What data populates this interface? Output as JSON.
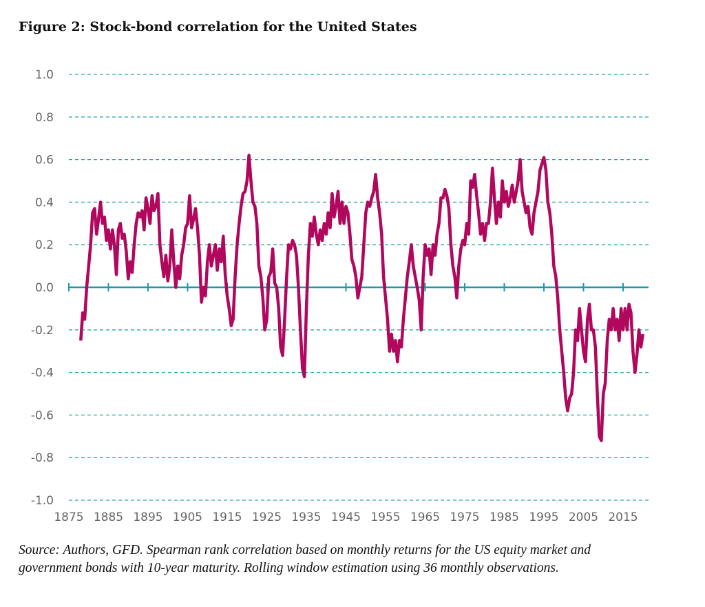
{
  "chart_data": {
    "type": "line",
    "title": "Figure 2: Stock-bond correlation for the United States",
    "xlabel": "",
    "ylabel": "",
    "ylim": [
      -1.0,
      1.0
    ],
    "xlim": [
      1875,
      2021
    ],
    "yticks": [
      "1.0",
      "0.8",
      "0.6",
      "0.4",
      "0.2",
      "0.0",
      "-0.2",
      "-0.4",
      "-0.6",
      "-0.8",
      "-1.0"
    ],
    "xticks": [
      "1875",
      "1885",
      "1895",
      "1905",
      "1915",
      "1925",
      "1935",
      "1945",
      "1955",
      "1965",
      "1975",
      "1985",
      "1995",
      "2005",
      "2015"
    ],
    "grid": "horizontal dashed",
    "legend": "none",
    "colors": {
      "line": "#b1085e",
      "grid": "#2aa7a7",
      "zero_line": "#1b9aa8"
    },
    "series": [
      {
        "points": [
          [
            1878,
            -0.25
          ],
          [
            1878.5,
            -0.12
          ],
          [
            1879,
            -0.15
          ],
          [
            1879.5,
            0.0
          ],
          [
            1880,
            0.1
          ],
          [
            1880.5,
            0.2
          ],
          [
            1881,
            0.35
          ],
          [
            1881.5,
            0.37
          ],
          [
            1882,
            0.25
          ],
          [
            1882.5,
            0.32
          ],
          [
            1883,
            0.4
          ],
          [
            1883.5,
            0.3
          ],
          [
            1884,
            0.33
          ],
          [
            1884.5,
            0.22
          ],
          [
            1885,
            0.27
          ],
          [
            1885.5,
            0.18
          ],
          [
            1886,
            0.27
          ],
          [
            1886.5,
            0.2
          ],
          [
            1887,
            0.06
          ],
          [
            1887.5,
            0.27
          ],
          [
            1888,
            0.3
          ],
          [
            1888.5,
            0.23
          ],
          [
            1889,
            0.25
          ],
          [
            1889.5,
            0.17
          ],
          [
            1890,
            0.04
          ],
          [
            1890.5,
            0.12
          ],
          [
            1891,
            0.07
          ],
          [
            1891.5,
            0.2
          ],
          [
            1892,
            0.3
          ],
          [
            1892.5,
            0.35
          ],
          [
            1893,
            0.33
          ],
          [
            1893.5,
            0.36
          ],
          [
            1894,
            0.27
          ],
          [
            1894.5,
            0.42
          ],
          [
            1895,
            0.37
          ],
          [
            1895.5,
            0.3
          ],
          [
            1896,
            0.43
          ],
          [
            1896.5,
            0.36
          ],
          [
            1897,
            0.38
          ],
          [
            1897.5,
            0.44
          ],
          [
            1898,
            0.2
          ],
          [
            1898.5,
            0.12
          ],
          [
            1899,
            0.05
          ],
          [
            1899.5,
            0.15
          ],
          [
            1900,
            0.03
          ],
          [
            1900.5,
            0.1
          ],
          [
            1901,
            0.27
          ],
          [
            1901.5,
            0.12
          ],
          [
            1902,
            0.0
          ],
          [
            1902.5,
            0.1
          ],
          [
            1903,
            0.04
          ],
          [
            1903.5,
            0.15
          ],
          [
            1904,
            0.2
          ],
          [
            1904.5,
            0.28
          ],
          [
            1905,
            0.3
          ],
          [
            1905.5,
            0.43
          ],
          [
            1906,
            0.28
          ],
          [
            1906.5,
            0.32
          ],
          [
            1907,
            0.37
          ],
          [
            1907.5,
            0.28
          ],
          [
            1908,
            0.15
          ],
          [
            1908.5,
            -0.07
          ],
          [
            1909,
            0.0
          ],
          [
            1909.5,
            -0.04
          ],
          [
            1910,
            0.12
          ],
          [
            1910.5,
            0.2
          ],
          [
            1911,
            0.1
          ],
          [
            1911.5,
            0.15
          ],
          [
            1912,
            0.2
          ],
          [
            1912.5,
            0.08
          ],
          [
            1913,
            0.18
          ],
          [
            1913.5,
            0.12
          ],
          [
            1914,
            0.24
          ],
          [
            1914.5,
            0.06
          ],
          [
            1915,
            -0.04
          ],
          [
            1915.5,
            -0.1
          ],
          [
            1916,
            -0.18
          ],
          [
            1916.5,
            -0.15
          ],
          [
            1917,
            0.05
          ],
          [
            1917.5,
            0.2
          ],
          [
            1918,
            0.3
          ],
          [
            1918.5,
            0.38
          ],
          [
            1919,
            0.44
          ],
          [
            1919.5,
            0.45
          ],
          [
            1920,
            0.5
          ],
          [
            1920.5,
            0.62
          ],
          [
            1921,
            0.5
          ],
          [
            1921.5,
            0.4
          ],
          [
            1922,
            0.38
          ],
          [
            1922.5,
            0.3
          ],
          [
            1923,
            0.1
          ],
          [
            1923.5,
            0.05
          ],
          [
            1924,
            -0.05
          ],
          [
            1924.5,
            -0.2
          ],
          [
            1925,
            -0.15
          ],
          [
            1925.5,
            0.05
          ],
          [
            1926,
            0.07
          ],
          [
            1926.5,
            0.18
          ],
          [
            1927,
            0.02
          ],
          [
            1927.5,
            0.0
          ],
          [
            1928,
            -0.1
          ],
          [
            1928.5,
            -0.28
          ],
          [
            1929,
            -0.32
          ],
          [
            1929.5,
            -0.15
          ],
          [
            1930,
            0.05
          ],
          [
            1930.5,
            0.2
          ],
          [
            1931,
            0.18
          ],
          [
            1931.5,
            0.22
          ],
          [
            1932,
            0.2
          ],
          [
            1932.5,
            0.15
          ],
          [
            1933,
            0.0
          ],
          [
            1933.5,
            -0.2
          ],
          [
            1934,
            -0.38
          ],
          [
            1934.5,
            -0.42
          ],
          [
            1935,
            -0.1
          ],
          [
            1935.5,
            0.15
          ],
          [
            1936,
            0.3
          ],
          [
            1936.5,
            0.24
          ],
          [
            1937,
            0.33
          ],
          [
            1937.5,
            0.25
          ],
          [
            1938,
            0.2
          ],
          [
            1938.5,
            0.27
          ],
          [
            1939,
            0.22
          ],
          [
            1939.5,
            0.3
          ],
          [
            1940,
            0.25
          ],
          [
            1940.5,
            0.35
          ],
          [
            1941,
            0.28
          ],
          [
            1941.5,
            0.44
          ],
          [
            1942,
            0.33
          ],
          [
            1942.5,
            0.38
          ],
          [
            1943,
            0.45
          ],
          [
            1943.5,
            0.3
          ],
          [
            1944,
            0.4
          ],
          [
            1944.5,
            0.3
          ],
          [
            1945,
            0.38
          ],
          [
            1945.5,
            0.35
          ],
          [
            1946,
            0.25
          ],
          [
            1946.5,
            0.13
          ],
          [
            1947,
            0.1
          ],
          [
            1947.5,
            0.05
          ],
          [
            1948,
            -0.05
          ],
          [
            1948.5,
            0.0
          ],
          [
            1949,
            0.05
          ],
          [
            1949.5,
            0.2
          ],
          [
            1950,
            0.35
          ],
          [
            1950.5,
            0.4
          ],
          [
            1951,
            0.38
          ],
          [
            1951.5,
            0.42
          ],
          [
            1952,
            0.45
          ],
          [
            1952.5,
            0.53
          ],
          [
            1953,
            0.42
          ],
          [
            1953.5,
            0.35
          ],
          [
            1954,
            0.25
          ],
          [
            1954.5,
            0.05
          ],
          [
            1955,
            -0.05
          ],
          [
            1955.5,
            -0.15
          ],
          [
            1956,
            -0.3
          ],
          [
            1956.5,
            -0.22
          ],
          [
            1957,
            -0.3
          ],
          [
            1957.5,
            -0.25
          ],
          [
            1958,
            -0.35
          ],
          [
            1958.5,
            -0.25
          ],
          [
            1959,
            -0.28
          ],
          [
            1959.5,
            -0.15
          ],
          [
            1960,
            -0.05
          ],
          [
            1960.5,
            0.05
          ],
          [
            1961,
            0.12
          ],
          [
            1961.5,
            0.2
          ],
          [
            1962,
            0.1
          ],
          [
            1962.5,
            0.05
          ],
          [
            1963,
            0.0
          ],
          [
            1963.5,
            -0.06
          ],
          [
            1964,
            -0.2
          ],
          [
            1964.5,
            0.05
          ],
          [
            1965,
            0.2
          ],
          [
            1965.5,
            0.15
          ],
          [
            1966,
            0.18
          ],
          [
            1966.5,
            0.06
          ],
          [
            1967,
            0.2
          ],
          [
            1967.5,
            0.15
          ],
          [
            1968,
            0.25
          ],
          [
            1968.5,
            0.3
          ],
          [
            1969,
            0.42
          ],
          [
            1969.5,
            0.42
          ],
          [
            1970,
            0.46
          ],
          [
            1970.5,
            0.43
          ],
          [
            1971,
            0.37
          ],
          [
            1971.5,
            0.2
          ],
          [
            1972,
            0.1
          ],
          [
            1972.5,
            0.05
          ],
          [
            1973,
            -0.05
          ],
          [
            1973.5,
            0.1
          ],
          [
            1974,
            0.18
          ],
          [
            1974.5,
            0.22
          ],
          [
            1975,
            0.2
          ],
          [
            1975.5,
            0.3
          ],
          [
            1976,
            0.25
          ],
          [
            1976.5,
            0.5
          ],
          [
            1977,
            0.47
          ],
          [
            1977.5,
            0.53
          ],
          [
            1978,
            0.43
          ],
          [
            1978.5,
            0.35
          ],
          [
            1979,
            0.25
          ],
          [
            1979.5,
            0.3
          ],
          [
            1980,
            0.22
          ],
          [
            1980.5,
            0.3
          ],
          [
            1981,
            0.3
          ],
          [
            1981.5,
            0.4
          ],
          [
            1982,
            0.56
          ],
          [
            1982.5,
            0.42
          ],
          [
            1983,
            0.3
          ],
          [
            1983.5,
            0.4
          ],
          [
            1984,
            0.33
          ],
          [
            1984.5,
            0.5
          ],
          [
            1985,
            0.4
          ],
          [
            1985.5,
            0.45
          ],
          [
            1986,
            0.38
          ],
          [
            1986.5,
            0.42
          ],
          [
            1987,
            0.48
          ],
          [
            1987.5,
            0.4
          ],
          [
            1988,
            0.45
          ],
          [
            1988.5,
            0.5
          ],
          [
            1989,
            0.6
          ],
          [
            1989.5,
            0.45
          ],
          [
            1990,
            0.4
          ],
          [
            1990.5,
            0.35
          ],
          [
            1991,
            0.38
          ],
          [
            1991.5,
            0.28
          ],
          [
            1992,
            0.25
          ],
          [
            1992.5,
            0.35
          ],
          [
            1993,
            0.4
          ],
          [
            1993.5,
            0.45
          ],
          [
            1994,
            0.55
          ],
          [
            1994.5,
            0.58
          ],
          [
            1995,
            0.61
          ],
          [
            1995.5,
            0.55
          ],
          [
            1996,
            0.4
          ],
          [
            1996.5,
            0.35
          ],
          [
            1997,
            0.25
          ],
          [
            1997.5,
            0.1
          ],
          [
            1998,
            0.05
          ],
          [
            1998.5,
            -0.05
          ],
          [
            1999,
            -0.2
          ],
          [
            1999.5,
            -0.3
          ],
          [
            2000,
            -0.4
          ],
          [
            2000.5,
            -0.52
          ],
          [
            2001,
            -0.58
          ],
          [
            2001.5,
            -0.52
          ],
          [
            2002,
            -0.5
          ],
          [
            2002.5,
            -0.4
          ],
          [
            2003,
            -0.2
          ],
          [
            2003.5,
            -0.25
          ],
          [
            2004,
            -0.1
          ],
          [
            2004.5,
            -0.2
          ],
          [
            2005,
            -0.3
          ],
          [
            2005.5,
            -0.35
          ],
          [
            2006,
            -0.15
          ],
          [
            2006.5,
            -0.08
          ],
          [
            2007,
            -0.2
          ],
          [
            2007.5,
            -0.2
          ],
          [
            2008,
            -0.28
          ],
          [
            2008.5,
            -0.5
          ],
          [
            2009,
            -0.7
          ],
          [
            2009.5,
            -0.72
          ],
          [
            2010,
            -0.5
          ],
          [
            2010.5,
            -0.45
          ],
          [
            2011,
            -0.25
          ],
          [
            2011.5,
            -0.15
          ],
          [
            2012,
            -0.2
          ],
          [
            2012.5,
            -0.1
          ],
          [
            2013,
            -0.2
          ],
          [
            2013.5,
            -0.15
          ],
          [
            2014,
            -0.25
          ],
          [
            2014.5,
            -0.1
          ],
          [
            2015,
            -0.2
          ],
          [
            2015.5,
            -0.1
          ],
          [
            2016,
            -0.2
          ],
          [
            2016.5,
            -0.08
          ],
          [
            2017,
            -0.12
          ],
          [
            2017.5,
            -0.3
          ],
          [
            2018,
            -0.4
          ],
          [
            2018.5,
            -0.32
          ],
          [
            2019,
            -0.2
          ],
          [
            2019.5,
            -0.28
          ],
          [
            2020,
            -0.22
          ]
        ]
      }
    ]
  },
  "source_line_1": "Source: Authors, GFD. Spearman rank correlation based on monthly returns for the US equity market and",
  "source_line_2": "government bonds with 10-year maturity. Rolling window estimation using 36 monthly observations."
}
